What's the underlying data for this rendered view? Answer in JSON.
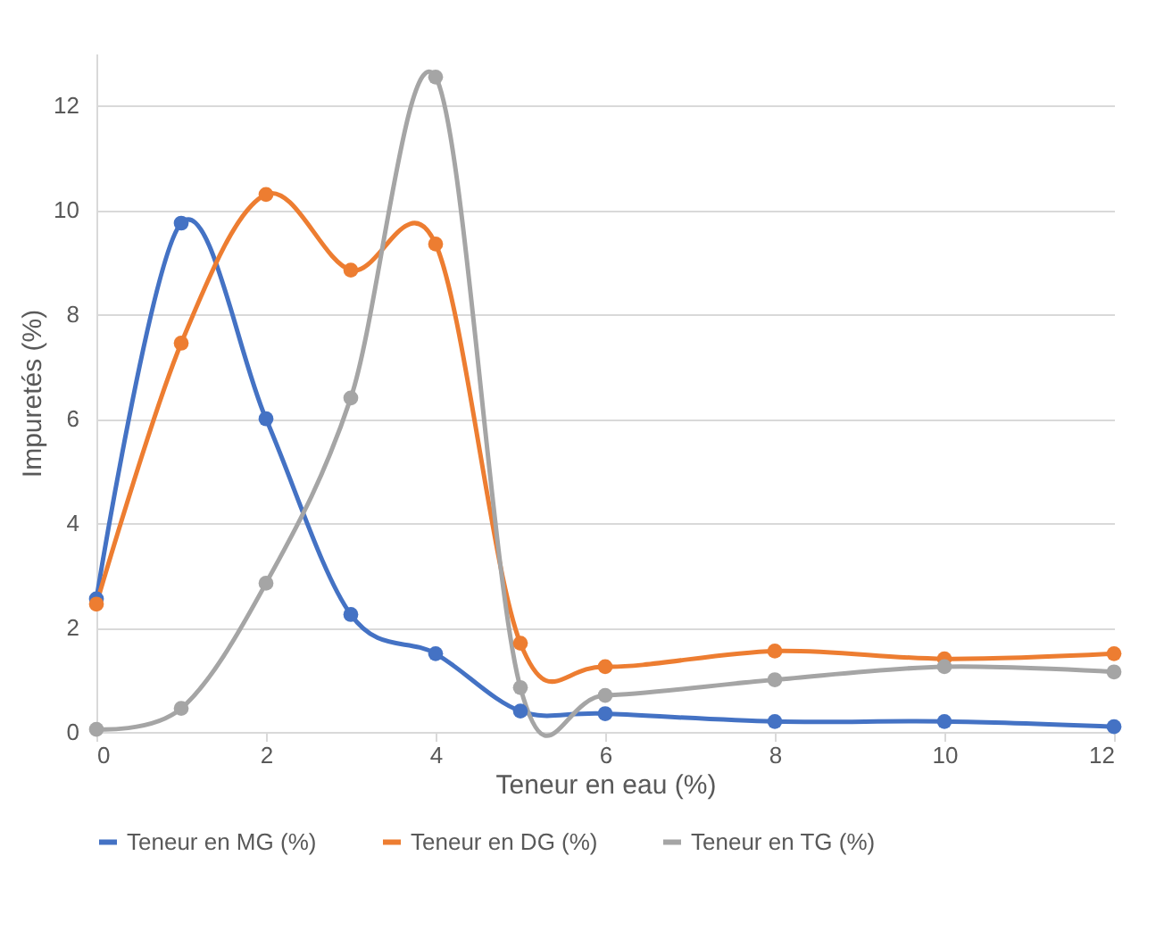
{
  "chart_data": {
    "type": "line",
    "xlabel": "Teneur en eau (%)",
    "ylabel": "Impuretés (%)",
    "x": [
      0,
      1,
      2,
      3,
      4,
      5,
      6,
      8,
      10,
      12
    ],
    "series": [
      {
        "name": "Teneur en MG (%)",
        "color": "#4472c4",
        "values": [
          2.55,
          9.75,
          6.0,
          2.25,
          1.5,
          0.4,
          0.35,
          0.2,
          0.2,
          0.1
        ]
      },
      {
        "name": "Teneur en DG (%)",
        "color": "#ed7d31",
        "values": [
          2.45,
          7.45,
          10.3,
          8.85,
          9.35,
          1.7,
          1.25,
          1.55,
          1.4,
          1.5
        ]
      },
      {
        "name": "Teneur en TG (%)",
        "color": "#a5a5a5",
        "values": [
          0.05,
          0.45,
          2.85,
          6.4,
          12.55,
          0.85,
          0.7,
          1.0,
          1.25,
          1.15
        ]
      }
    ],
    "xlim": [
      0,
      12
    ],
    "xticks": [
      0,
      2,
      4,
      6,
      8,
      10,
      12
    ],
    "ylim": [
      0,
      13
    ],
    "yticks": [
      0,
      2,
      4,
      6,
      8,
      10,
      12
    ],
    "grid": "y",
    "legend": "bottom",
    "marker": "circle",
    "line_style": "solid"
  }
}
